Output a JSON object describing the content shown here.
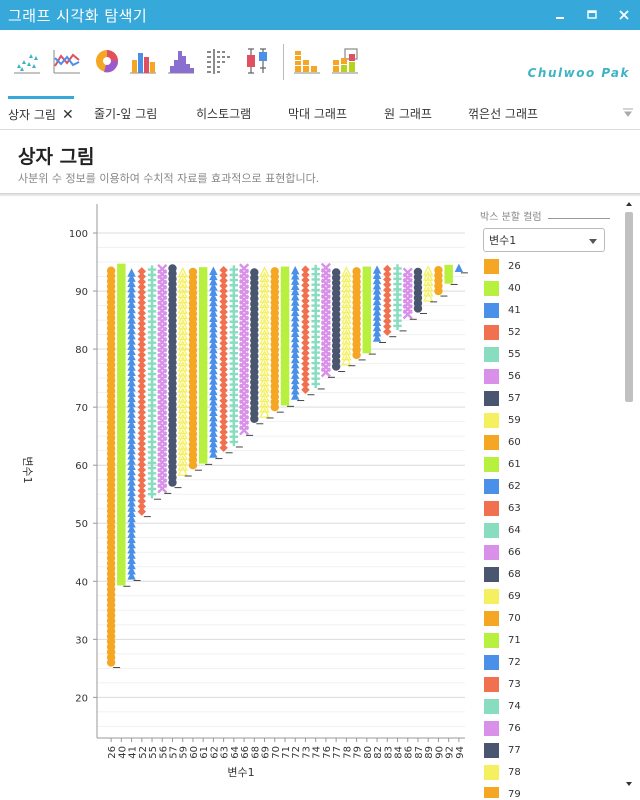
{
  "window": {
    "title": "그래프 시각화 탐색기"
  },
  "toolbar": {
    "tools": [
      "scatter-plot-icon",
      "line-chart-icon",
      "pie-chart-icon",
      "bar-chart-icon",
      "histogram-icon",
      "stem-leaf-icon",
      "box-plot-icon",
      "stacked-bar-icon",
      "grouped-bar-icon"
    ],
    "brand": "Chulwoo Pak"
  },
  "tabs": [
    {
      "label": "상자 그림",
      "active": true,
      "closable": true
    },
    {
      "label": "줄기-잎 그림",
      "active": false
    },
    {
      "label": "히스토그램",
      "active": false
    },
    {
      "label": "막대 그래프",
      "active": false
    },
    {
      "label": "원 그래프",
      "active": false
    },
    {
      "label": "꺾은선 그래프",
      "active": false
    }
  ],
  "page": {
    "title": "상자 그림",
    "description": "사분위 수 정보를 이용하여 수치적 자료를 효과적으로 표현합니다."
  },
  "side": {
    "legend_title": "박스 분할 컬럼",
    "select_value": "변수1"
  },
  "legend": [
    {
      "label": "26",
      "color": "#f5a623"
    },
    {
      "label": "40",
      "color": "#b8f040"
    },
    {
      "label": "41",
      "color": "#4a90e8"
    },
    {
      "label": "52",
      "color": "#f07050"
    },
    {
      "label": "55",
      "color": "#88ddc0"
    },
    {
      "label": "56",
      "color": "#d890e8"
    },
    {
      "label": "57",
      "color": "#4a5570"
    },
    {
      "label": "59",
      "color": "#f5f060"
    },
    {
      "label": "60",
      "color": "#f5a623"
    },
    {
      "label": "61",
      "color": "#b8f040"
    },
    {
      "label": "62",
      "color": "#4a90e8"
    },
    {
      "label": "63",
      "color": "#f07050"
    },
    {
      "label": "64",
      "color": "#88ddc0"
    },
    {
      "label": "66",
      "color": "#d890e8"
    },
    {
      "label": "68",
      "color": "#4a5570"
    },
    {
      "label": "69",
      "color": "#f5f060"
    },
    {
      "label": "70",
      "color": "#f5a623"
    },
    {
      "label": "71",
      "color": "#b8f040"
    },
    {
      "label": "72",
      "color": "#4a90e8"
    },
    {
      "label": "73",
      "color": "#f07050"
    },
    {
      "label": "74",
      "color": "#88ddc0"
    },
    {
      "label": "76",
      "color": "#d890e8"
    },
    {
      "label": "77",
      "color": "#4a5570"
    },
    {
      "label": "78",
      "color": "#f5f060"
    },
    {
      "label": "79",
      "color": "#f5a623"
    }
  ],
  "chart_data": {
    "type": "scatter",
    "xlabel": "변수1",
    "ylabel": "변수1",
    "ylim": [
      13,
      105
    ],
    "yticks": [
      20,
      30,
      40,
      50,
      60,
      70,
      80,
      90,
      100
    ],
    "grid": true,
    "categories": [
      "26",
      "40",
      "41",
      "52",
      "55",
      "56",
      "57",
      "59",
      "60",
      "61",
      "62",
      "63",
      "64",
      "66",
      "68",
      "69",
      "70",
      "71",
      "72",
      "73",
      "74",
      "76",
      "77",
      "78",
      "79",
      "80",
      "82",
      "83",
      "84",
      "86",
      "87",
      "89",
      "90",
      "92",
      "94"
    ],
    "y_top": 94,
    "series_note_colors": [
      "#f5a623",
      "#b8f040",
      "#4a90e8",
      "#f07050",
      "#88ddc0",
      "#d890e8",
      "#4a5570",
      "#f5f060"
    ],
    "marker_cycle": [
      "circle",
      "square",
      "triangle",
      "diamond",
      "plus",
      "cross",
      "circle",
      "triangle-open"
    ]
  }
}
